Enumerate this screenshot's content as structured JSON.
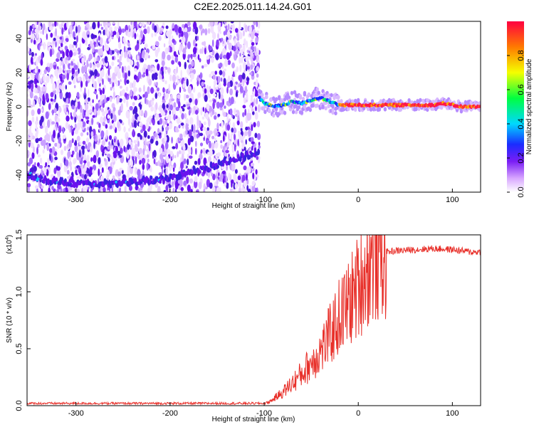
{
  "title": "C2E2.2025.011.14.24.G01",
  "chart_data": [
    {
      "type": "heatmap",
      "name": "spectrogram",
      "xlabel": "Height of straight line (km)",
      "ylabel": "Frequency (Hz)",
      "xlim": [
        -352,
        130
      ],
      "ylim": [
        -50,
        50
      ],
      "xticks": [
        -300,
        -200,
        -100,
        0,
        100
      ],
      "xtick_labels": [
        "-300",
        "-200",
        "-100",
        "0",
        "100"
      ],
      "yticks": [
        -40,
        -20,
        0,
        20,
        40
      ],
      "ytick_labels": [
        "-40",
        "-20",
        "0",
        "20",
        "40"
      ],
      "noise_region_x": [
        -352,
        -105
      ],
      "signal_trace": {
        "x": [
          -105,
          -100,
          -90,
          -80,
          -70,
          -60,
          -50,
          -40,
          -30,
          -20,
          -10,
          0,
          20,
          40,
          60,
          80,
          90,
          100,
          110,
          130
        ],
        "y": [
          5,
          2,
          0,
          1,
          3,
          2,
          4,
          5,
          3,
          1,
          1,
          1,
          1,
          1,
          1,
          1,
          2,
          1,
          0,
          0
        ]
      },
      "noise_band_trace": {
        "x": [
          -352,
          -340,
          -320,
          -300,
          -280,
          -260,
          -240,
          -220,
          -200,
          -180,
          -160,
          -140,
          -120,
          -110
        ],
        "y": [
          -40,
          -42,
          -44,
          -45,
          -45,
          -45,
          -44,
          -43,
          -42,
          -38,
          -36,
          -32,
          -29,
          -27
        ]
      },
      "colorbar": {
        "label": "Normalized spectral amplitude",
        "ticks": [
          0.0,
          0.2,
          0.4,
          0.6,
          0.8
        ],
        "tick_labels": [
          "0.0",
          "0.2",
          "0.4",
          "0.6",
          "0.8"
        ],
        "range": [
          0,
          1
        ]
      }
    },
    {
      "type": "line",
      "name": "snr",
      "xlabel": "Height of straight line (km)",
      "ylabel": "SNR (10 * v/v)",
      "multiplier": "(x10",
      "multiplier_exp": "4",
      "multiplier_close": ")",
      "xlim": [
        -352,
        130
      ],
      "ylim": [
        0,
        1.5
      ],
      "xticks": [
        -300,
        -200,
        -100,
        0,
        100
      ],
      "xtick_labels": [
        "-300",
        "-200",
        "-100",
        "0",
        "100"
      ],
      "yticks": [
        0.0,
        0.5,
        1.0,
        1.5
      ],
      "ytick_labels": [
        "0.0",
        "0.5",
        "1.0",
        "1.5"
      ],
      "color": "#e8302a",
      "envelope": {
        "x": [
          -352,
          -100,
          -95,
          -90,
          -80,
          -70,
          -60,
          -50,
          -40,
          -30,
          -20,
          -10,
          0,
          10,
          20,
          30,
          40,
          60,
          80,
          100,
          110,
          120,
          130
        ],
        "y": [
          0.02,
          0.02,
          0.03,
          0.06,
          0.12,
          0.2,
          0.28,
          0.38,
          0.48,
          0.62,
          0.78,
          0.9,
          1.05,
          1.22,
          1.3,
          1.35,
          1.36,
          1.37,
          1.38,
          1.37,
          1.36,
          1.35,
          1.35
        ]
      }
    }
  ]
}
